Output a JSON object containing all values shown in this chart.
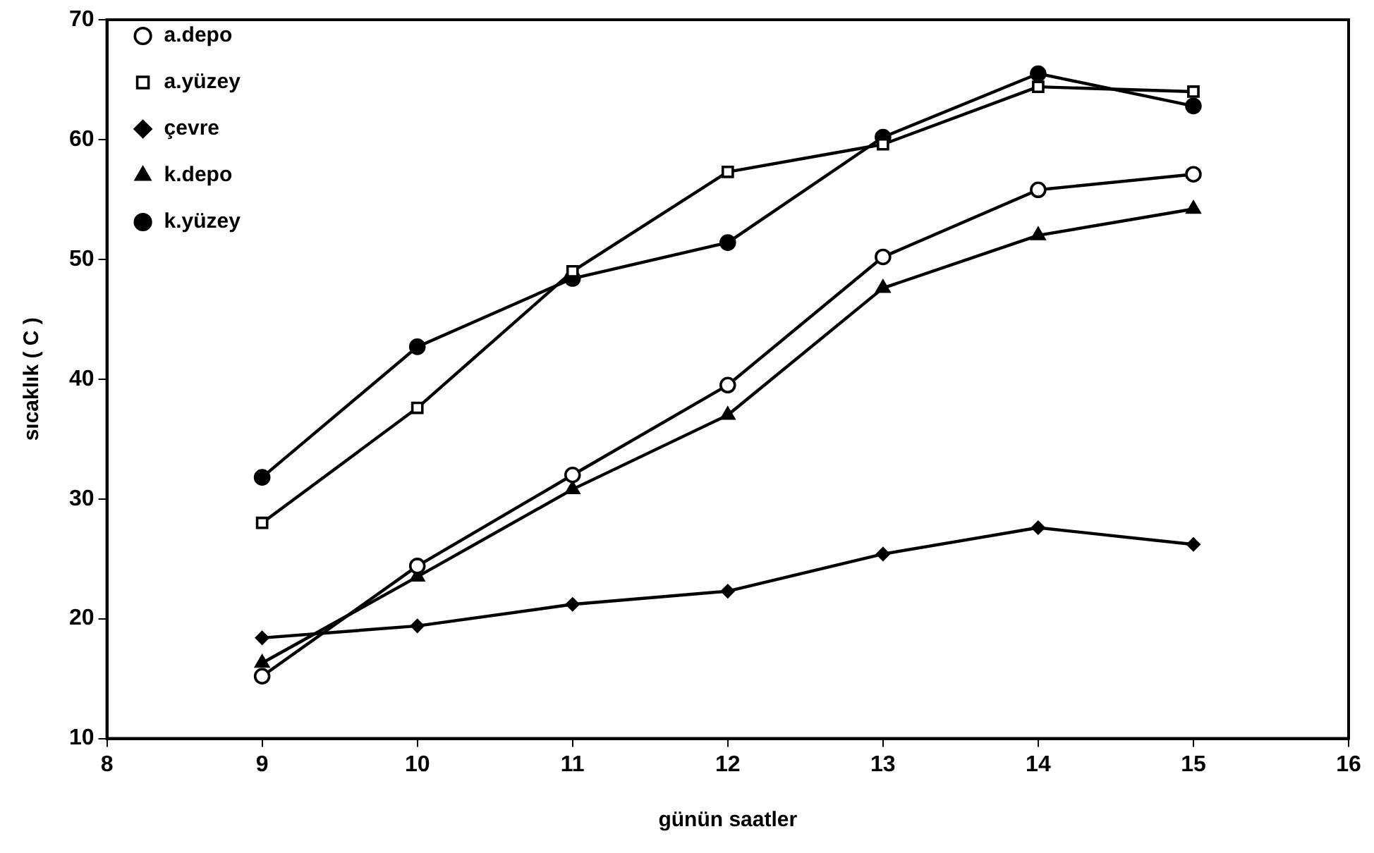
{
  "chart_data": {
    "type": "line",
    "xlabel": "günün saatler",
    "ylabel": "sıcaklık ( C )",
    "xlim": [
      8,
      16
    ],
    "xticks": [
      8,
      9,
      10,
      11,
      12,
      13,
      14,
      15,
      16
    ],
    "ylim": [
      10,
      70
    ],
    "yticks": [
      10,
      20,
      30,
      40,
      50,
      60,
      70
    ],
    "x": [
      9,
      10,
      11,
      12,
      13,
      14,
      15
    ],
    "grid": false,
    "legend": "top left",
    "line_style": "solid",
    "series": [
      {
        "name": "a.depo",
        "color": "#000000",
        "marker": "circle",
        "values": [
          15.2,
          24.4,
          32,
          39.5,
          50.2,
          55.8,
          57.1
        ]
      },
      {
        "name": "a.yüzey",
        "color": "#000000",
        "marker": "square",
        "values": [
          28,
          37.6,
          49,
          57.3,
          59.6,
          64.4,
          64
        ]
      },
      {
        "name": "çevre",
        "color": "#000000",
        "marker": "diamond",
        "values": [
          18.4,
          19.4,
          21.2,
          22.3,
          25.4,
          27.6,
          26.2
        ]
      },
      {
        "name": "k.depo",
        "color": "#000000",
        "marker": "triangle",
        "values": [
          16.3,
          23.5,
          30.8,
          37,
          47.6,
          52,
          54.2
        ]
      },
      {
        "name": "k.yüzey",
        "color": "#000000",
        "marker": "circle",
        "values": [
          31.8,
          42.7,
          48.4,
          51.4,
          60.2,
          65.5,
          62.8
        ]
      }
    ]
  }
}
